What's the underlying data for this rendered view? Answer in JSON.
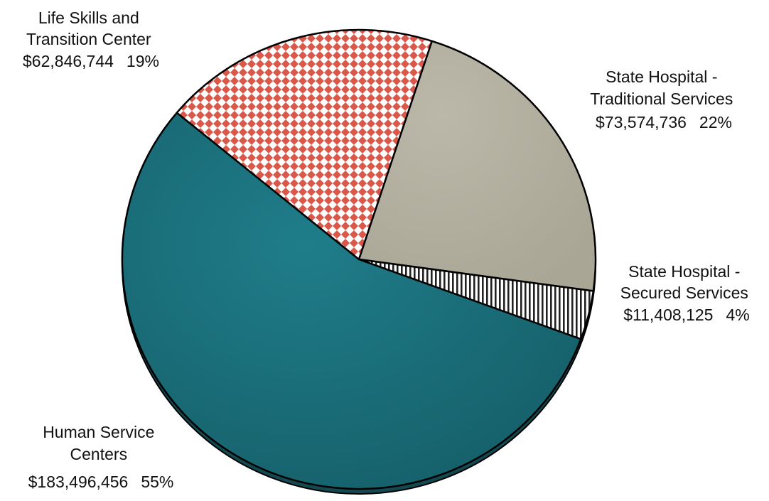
{
  "chart_data": {
    "type": "pie",
    "slices": [
      {
        "key": "hsc",
        "label_lines": [
          "Human  Service",
          "Centers"
        ],
        "amount": "$183,496,456",
        "percent_label": "55%",
        "value": 183496456,
        "percent": 55,
        "color": "#1a6e7a",
        "pattern": "solid"
      },
      {
        "key": "lstc",
        "label_lines": [
          "Life Skills and",
          "Transition  Center"
        ],
        "amount": "$62,846,744",
        "percent_label": "19%",
        "value": 62846744,
        "percent": 19,
        "color": "#d9584a",
        "pattern": "checker"
      },
      {
        "key": "shts",
        "label_lines": [
          "State Hospital -",
          "Traditional  Services"
        ],
        "amount": "$73,574,736",
        "percent_label": "22%",
        "value": 73574736,
        "percent": 22,
        "color": "#b4b1a1",
        "pattern": "solid"
      },
      {
        "key": "shss",
        "label_lines": [
          "State Hospital -",
          "Secured  Services"
        ],
        "amount": "$11,408,125",
        "percent_label": "4%",
        "value": 11408125,
        "percent": 4,
        "color": "#222222",
        "pattern": "vertical-stripes"
      }
    ]
  }
}
